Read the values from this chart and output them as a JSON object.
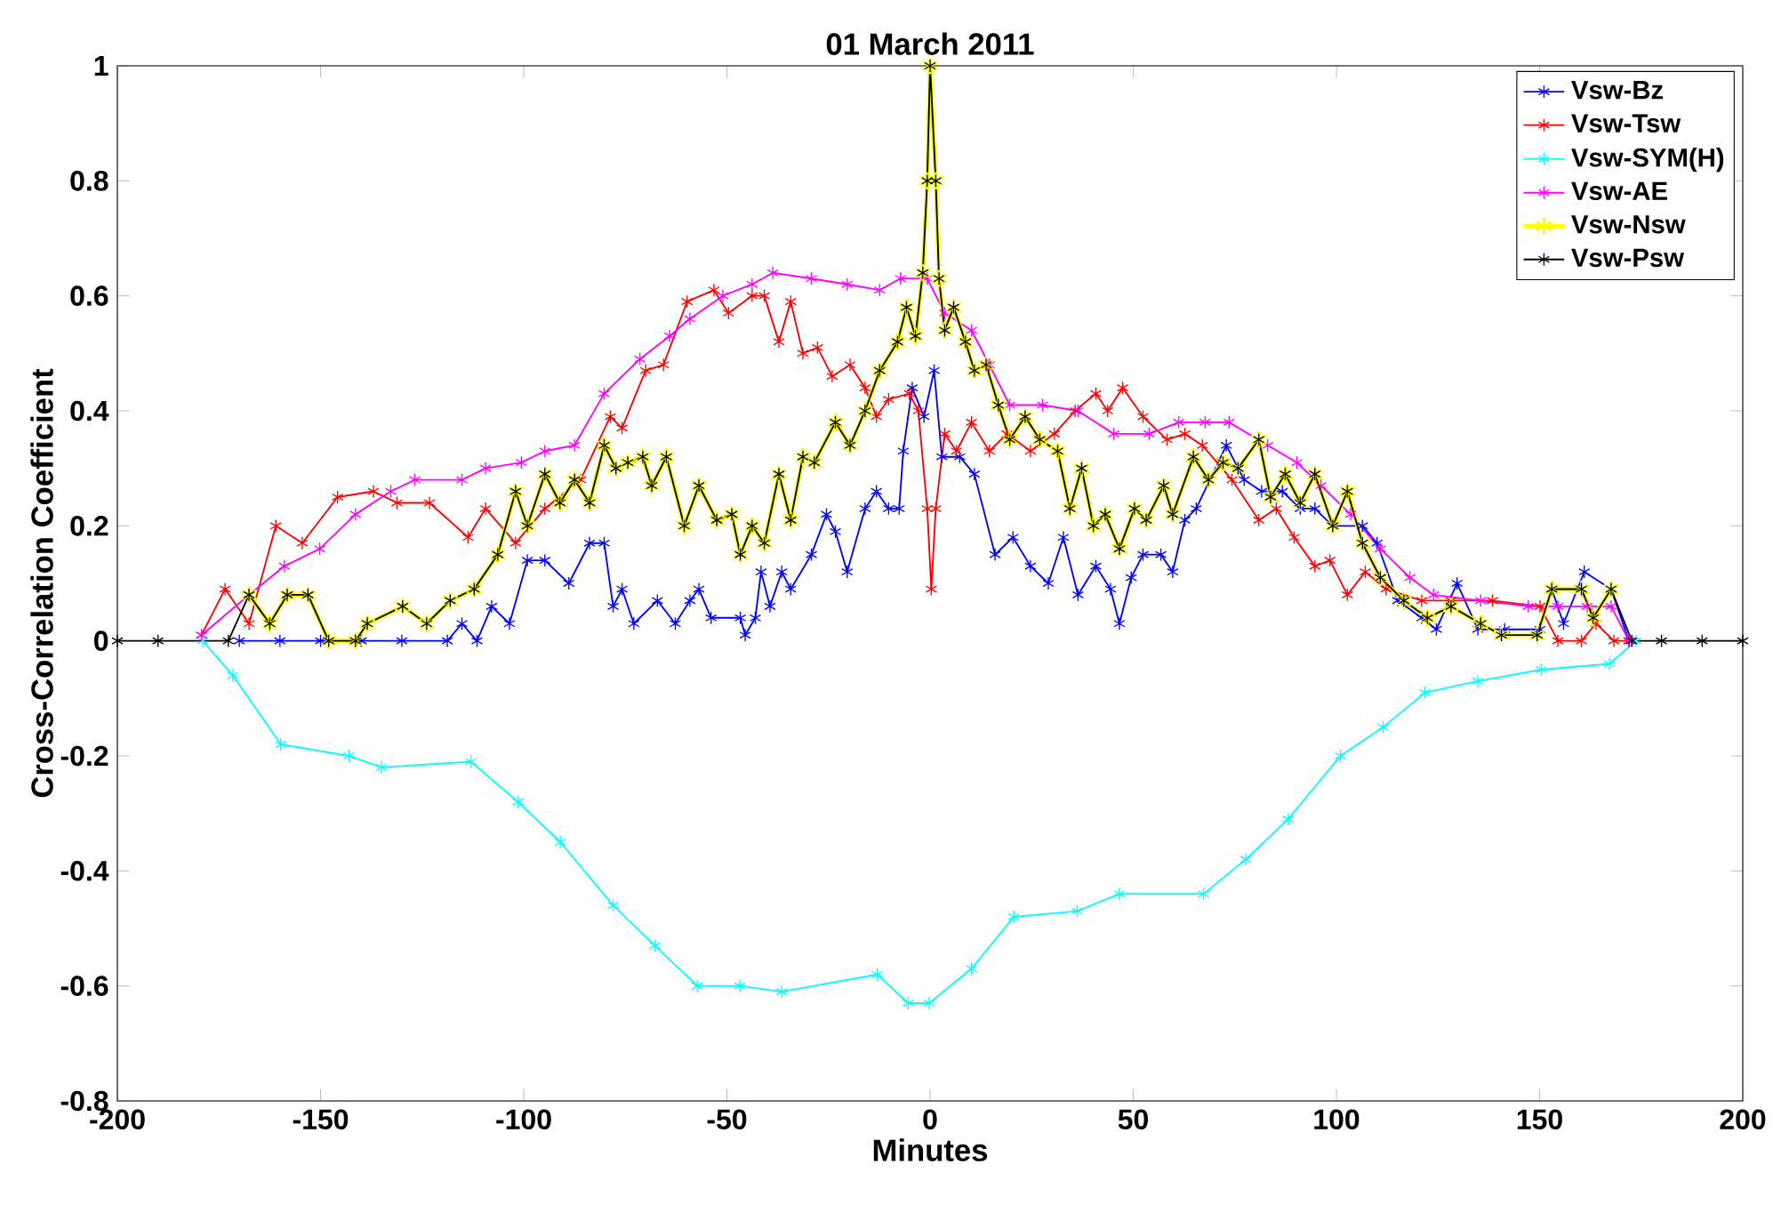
{
  "chart_data": {
    "type": "line",
    "title": "01 March 2011",
    "xlabel": "Minutes",
    "ylabel": "Cross-Correlation Coefficient",
    "xlim": [
      -200,
      200
    ],
    "ylim": [
      -0.8,
      1
    ],
    "xticks": [
      -200,
      -150,
      -100,
      -50,
      0,
      50,
      100,
      150,
      200
    ],
    "yticks": [
      -0.8,
      -0.6,
      -0.4,
      -0.2,
      0,
      0.2,
      0.4,
      0.6,
      0.8,
      1
    ],
    "marker": "cross",
    "line_style": "solid",
    "legend": "top right",
    "grid": false,
    "series": [
      {
        "name": "Vsw-Bz",
        "color": "#0000ff",
        "x": [
          -170,
          -160,
          -150,
          -140,
          -130,
          -118.8,
          -115.2,
          -111.5,
          -107.9,
          -103.5,
          -99.1,
          -94.8,
          -88.9,
          -83.8,
          -80.2,
          -78.0,
          -75.8,
          -72.9,
          -67.1,
          -62.7,
          -59.1,
          -56.9,
          -53.9,
          -46.7,
          -45.5,
          -43.0,
          -41.6,
          -39.4,
          -36.5,
          -34.3,
          -29.2,
          -25.5,
          -23.3,
          -20.4,
          -16.0,
          -13.2,
          -10.2,
          -7.6,
          -6.6,
          -4.4,
          -1.5,
          1.0,
          2.9,
          7.3,
          10.9,
          16.0,
          20.4,
          24.7,
          29.1,
          32.8,
          36.4,
          40.8,
          44.4,
          46.6,
          49.5,
          52.4,
          56.8,
          59.7,
          62.7,
          65.5,
          72.9,
          77.3,
          81.6,
          86.7,
          91.1,
          94.7,
          99.1,
          106.4,
          110.0,
          115.1,
          121.0,
          124.6,
          129.7,
          134.8,
          141.4,
          150.1,
          153.0,
          155.9,
          161.0,
          167.6,
          172.0
        ],
        "values": [
          0,
          0,
          0,
          0,
          0,
          0,
          0.03,
          0,
          0.06,
          0.03,
          0.14,
          0.14,
          0.1,
          0.17,
          0.17,
          0.06,
          0.09,
          0.03,
          0.07,
          0.03,
          0.07,
          0.09,
          0.04,
          0.04,
          0.01,
          0.04,
          0.12,
          0.06,
          0.12,
          0.09,
          0.15,
          0.22,
          0.19,
          0.12,
          0.23,
          0.26,
          0.23,
          0.23,
          0.33,
          0.44,
          0.39,
          0.47,
          0.32,
          0.32,
          0.29,
          0.15,
          0.18,
          0.13,
          0.1,
          0.18,
          0.08,
          0.13,
          0.09,
          0.03,
          0.11,
          0.15,
          0.15,
          0.12,
          0.21,
          0.23,
          0.34,
          0.28,
          0.26,
          0.26,
          0.23,
          0.23,
          0.2,
          0.2,
          0.17,
          0.07,
          0.04,
          0.02,
          0.1,
          0.02,
          0.02,
          0.02,
          0.09,
          0.03,
          0.12,
          0.09,
          0
        ]
      },
      {
        "name": "Vsw-Tsw",
        "color": "#ff0000",
        "x": [
          -179.3,
          -173.5,
          -167.6,
          -161.0,
          -154.5,
          -145.8,
          -137.0,
          -131.2,
          -123.2,
          -113.7,
          -109.4,
          -102.0,
          -94.8,
          -86.0,
          -78.7,
          -75.8,
          -70.0,
          -65.6,
          -59.8,
          -53.2,
          -49.6,
          -43.8,
          -40.8,
          -37.2,
          -34.3,
          -31.3,
          -27.7,
          -24.1,
          -19.7,
          -16.0,
          -13.2,
          -10.2,
          -5.1,
          -2.9,
          -0.7,
          0.3,
          1.4,
          3.6,
          6.5,
          10.2,
          14.6,
          18.9,
          24.7,
          30.6,
          35.7,
          40.8,
          43.7,
          47.4,
          52.4,
          58.3,
          62.7,
          67.0,
          74.3,
          80.9,
          85.2,
          89.6,
          94.7,
          98.4,
          102.7,
          107.1,
          112.2,
          121.0,
          128.2,
          138.4,
          150.1,
          154.5,
          160.3,
          163.9,
          168.3,
          172.0
        ],
        "values": [
          0.01,
          0.09,
          0.03,
          0.2,
          0.17,
          0.25,
          0.26,
          0.24,
          0.24,
          0.18,
          0.23,
          0.17,
          0.23,
          0.28,
          0.39,
          0.37,
          0.47,
          0.48,
          0.59,
          0.61,
          0.57,
          0.6,
          0.6,
          0.52,
          0.59,
          0.5,
          0.51,
          0.46,
          0.48,
          0.44,
          0.39,
          0.42,
          0.43,
          0.4,
          0.23,
          0.09,
          0.23,
          0.36,
          0.33,
          0.38,
          0.33,
          0.36,
          0.33,
          0.36,
          0.4,
          0.43,
          0.4,
          0.44,
          0.39,
          0.35,
          0.36,
          0.34,
          0.28,
          0.21,
          0.23,
          0.18,
          0.13,
          0.14,
          0.08,
          0.12,
          0.09,
          0.07,
          0.07,
          0.07,
          0.06,
          0,
          0,
          0.03,
          0,
          0
        ]
      },
      {
        "name": "Vsw-SYM(H)",
        "color": "#00ffff",
        "x": [
          -179,
          -171.6,
          -159.8,
          -143.0,
          -135.0,
          -113.0,
          -101.4,
          -91.0,
          -78.0,
          -67.7,
          -57.3,
          -46.8,
          -36.5,
          -13.0,
          -5.4,
          -0.2,
          10.2,
          20.6,
          36.2,
          46.6,
          67.3,
          77.7,
          88.1,
          101.0,
          111.5,
          121.8,
          134.8,
          150.4,
          167.2,
          173.7
        ],
        "values": [
          0,
          -0.06,
          -0.18,
          -0.2,
          -0.22,
          -0.21,
          -0.28,
          -0.35,
          -0.46,
          -0.53,
          -0.6,
          -0.6,
          -0.61,
          -0.58,
          -0.63,
          -0.63,
          -0.57,
          -0.48,
          -0.47,
          -0.44,
          -0.44,
          -0.38,
          -0.31,
          -0.2,
          -0.15,
          -0.09,
          -0.07,
          -0.05,
          -0.04,
          0
        ]
      },
      {
        "name": "Vsw-AE",
        "color": "#ff00ff",
        "x": [
          -179.3,
          -167.6,
          -158.9,
          -150.2,
          -141.4,
          -132.7,
          -126.8,
          -115.2,
          -109.4,
          -100.6,
          -94.8,
          -87.5,
          -80.2,
          -71.4,
          -64.1,
          -59.1,
          -51.0,
          -43.8,
          -38.7,
          -29.2,
          -20.4,
          -12.4,
          -7.3,
          -0.7,
          3.6,
          10.2,
          14.6,
          19.6,
          27.7,
          36.4,
          45.2,
          53.9,
          61.2,
          67.7,
          73.6,
          83.1,
          90.3,
          96.2,
          103.5,
          110.8,
          118.1,
          123.9,
          135.5,
          147.2,
          154.5,
          161.7,
          167.6,
          172.0
        ],
        "values": [
          0.01,
          0.08,
          0.13,
          0.16,
          0.22,
          0.26,
          0.28,
          0.28,
          0.3,
          0.31,
          0.33,
          0.34,
          0.43,
          0.49,
          0.53,
          0.56,
          0.6,
          0.62,
          0.64,
          0.63,
          0.62,
          0.61,
          0.63,
          0.63,
          0.57,
          0.54,
          0.48,
          0.41,
          0.41,
          0.4,
          0.36,
          0.36,
          0.38,
          0.38,
          0.38,
          0.34,
          0.31,
          0.27,
          0.22,
          0.16,
          0.11,
          0.08,
          0.07,
          0.06,
          0.06,
          0.06,
          0.06,
          0
        ]
      },
      {
        "name": "Vsw-Nsw",
        "color": "#ffff00",
        "x": [
          -167.6,
          -162.5,
          -158.2,
          -153.1,
          -148.0,
          -141.4,
          -138.5,
          -129.8,
          -123.9,
          -118.1,
          -112.2,
          -106.4,
          -102.0,
          -99.1,
          -94.8,
          -91.1,
          -87.5,
          -83.8,
          -80.2,
          -77.3,
          -74.4,
          -70.7,
          -68.5,
          -64.9,
          -60.5,
          -56.9,
          -52.5,
          -48.8,
          -46.7,
          -43.8,
          -40.8,
          -37.2,
          -34.3,
          -31.3,
          -28.5,
          -23.3,
          -19.7,
          -16.0,
          -12.4,
          -8.0,
          -5.8,
          -3.6,
          -1.8,
          -0.7,
          0,
          1.4,
          2.2,
          3.6,
          5.8,
          8.7,
          10.9,
          13.8,
          16.8,
          19.6,
          23.4,
          27.0,
          31.4,
          34.4,
          37.3,
          40.2,
          43.1,
          46.6,
          50.3,
          53.2,
          57.5,
          59.7,
          64.8,
          68.5,
          72.1,
          75.8,
          80.9,
          83.8,
          87.4,
          91.1,
          94.7,
          99.1,
          102.7,
          106.4,
          110.8,
          116.6,
          122.4,
          128.2,
          135.5,
          140.6,
          149.4,
          153.0,
          160.3,
          163.2,
          167.6
        ],
        "values": [
          0.08,
          0.03,
          0.08,
          0.08,
          0,
          0,
          0.03,
          0.06,
          0.03,
          0.07,
          0.09,
          0.15,
          0.26,
          0.2,
          0.29,
          0.24,
          0.28,
          0.24,
          0.34,
          0.3,
          0.31,
          0.32,
          0.27,
          0.32,
          0.2,
          0.27,
          0.21,
          0.22,
          0.15,
          0.2,
          0.17,
          0.29,
          0.21,
          0.32,
          0.31,
          0.38,
          0.34,
          0.4,
          0.47,
          0.52,
          0.58,
          0.53,
          0.64,
          0.8,
          1,
          0.8,
          0.63,
          0.54,
          0.58,
          0.52,
          0.47,
          0.48,
          0.41,
          0.35,
          0.39,
          0.35,
          0.33,
          0.23,
          0.3,
          0.2,
          0.22,
          0.16,
          0.23,
          0.21,
          0.27,
          0.22,
          0.32,
          0.28,
          0.31,
          0.3,
          0.35,
          0.25,
          0.29,
          0.24,
          0.29,
          0.2,
          0.26,
          0.17,
          0.11,
          0.07,
          0.04,
          0.06,
          0.03,
          0.01,
          0.01,
          0.09,
          0.09,
          0.04,
          0.09
        ]
      },
      {
        "name": "Vsw-Psw",
        "color": "#000000",
        "x": [
          -200,
          -190,
          -172.7,
          -167.6,
          -162.5,
          -158.2,
          -153.1,
          -148.0,
          -141.4,
          -138.5,
          -129.8,
          -123.9,
          -118.1,
          -112.2,
          -106.4,
          -102.0,
          -99.1,
          -94.8,
          -91.1,
          -87.5,
          -83.8,
          -80.2,
          -77.3,
          -74.4,
          -70.7,
          -68.5,
          -64.9,
          -60.5,
          -56.9,
          -52.5,
          -48.8,
          -46.7,
          -43.8,
          -40.8,
          -37.2,
          -34.3,
          -31.3,
          -28.5,
          -23.3,
          -19.7,
          -16.0,
          -12.4,
          -8.0,
          -5.8,
          -3.6,
          -1.8,
          -0.7,
          0,
          1.4,
          2.2,
          3.6,
          5.8,
          8.7,
          10.9,
          13.8,
          16.8,
          19.6,
          23.4,
          27.0,
          31.4,
          34.4,
          37.3,
          40.2,
          43.1,
          46.6,
          50.3,
          53.2,
          57.5,
          59.7,
          64.8,
          68.5,
          72.1,
          75.8,
          80.9,
          83.8,
          87.4,
          91.1,
          94.7,
          99.1,
          102.7,
          106.4,
          110.8,
          116.6,
          122.4,
          128.2,
          135.5,
          140.6,
          149.4,
          153.0,
          160.3,
          163.2,
          167.6,
          172.7,
          180,
          190,
          200
        ],
        "values": [
          0,
          0,
          0,
          0.08,
          0.03,
          0.08,
          0.08,
          0,
          0,
          0.03,
          0.06,
          0.03,
          0.07,
          0.09,
          0.15,
          0.26,
          0.2,
          0.29,
          0.24,
          0.28,
          0.24,
          0.34,
          0.3,
          0.31,
          0.32,
          0.27,
          0.32,
          0.2,
          0.27,
          0.21,
          0.22,
          0.15,
          0.2,
          0.17,
          0.29,
          0.21,
          0.32,
          0.31,
          0.38,
          0.34,
          0.4,
          0.47,
          0.52,
          0.58,
          0.53,
          0.64,
          0.8,
          1,
          0.8,
          0.63,
          0.54,
          0.58,
          0.52,
          0.47,
          0.48,
          0.41,
          0.35,
          0.39,
          0.35,
          0.33,
          0.23,
          0.3,
          0.2,
          0.22,
          0.16,
          0.23,
          0.21,
          0.27,
          0.22,
          0.32,
          0.28,
          0.31,
          0.3,
          0.35,
          0.25,
          0.29,
          0.24,
          0.29,
          0.2,
          0.26,
          0.17,
          0.11,
          0.07,
          0.04,
          0.06,
          0.03,
          0.01,
          0.01,
          0.09,
          0.09,
          0.04,
          0.09,
          0,
          0,
          0,
          0
        ]
      }
    ]
  }
}
